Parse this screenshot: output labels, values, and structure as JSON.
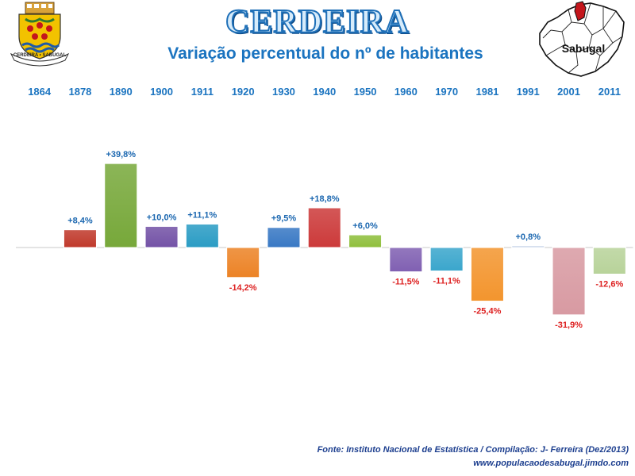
{
  "header": {
    "title": "CERDEIRA",
    "subtitle": "Variação percentual do nº de habitantes",
    "map_label": "Sabugal",
    "crest_text": "CERDEIRA • SABUGAL"
  },
  "footer": {
    "source": "Fonte: Instituto Nacional de Estatística / Compilação: J- Ferreira (Dez/2013)",
    "website": "www.populacaodesabugal.jimdo.com"
  },
  "chart_data": {
    "type": "bar",
    "title": "Variação percentual do nº de habitantes",
    "xlabel": "",
    "ylabel": "",
    "categories": [
      "1864",
      "1878",
      "1890",
      "1900",
      "1911",
      "1920",
      "1930",
      "1940",
      "1950",
      "1960",
      "1970",
      "1981",
      "1991",
      "2001",
      "2011"
    ],
    "values": [
      null,
      8.4,
      39.8,
      10.0,
      11.1,
      -14.2,
      9.5,
      18.8,
      6.0,
      -11.5,
      -11.1,
      -25.4,
      0.8,
      -31.9,
      -12.6
    ],
    "labels": [
      "",
      "+8,4%",
      "+39,8%",
      "+10,0%",
      "+11,1%",
      "-14,2%",
      "+9,5%",
      "+18,8%",
      "+6,0%",
      "-11,5%",
      "-11,1%",
      "-25,4%",
      "+0,8%",
      "-31,9%",
      "-12,6%"
    ],
    "ylim": [
      -35,
      42
    ],
    "grid": false,
    "legend": "none",
    "colors": [
      "#ffffff",
      "#c0392b",
      "#77a83a",
      "#7352a6",
      "#2a9cc4",
      "#ec8326",
      "#3878c4",
      "#cc3a3a",
      "#8fbf3c",
      "#8060b2",
      "#3aa6cc",
      "#f3952e",
      "#b8c8e2",
      "#d89aa2",
      "#b8d39a"
    ],
    "positive_label_color": "#1b67b0",
    "negative_label_color": "#dd1f1f"
  }
}
